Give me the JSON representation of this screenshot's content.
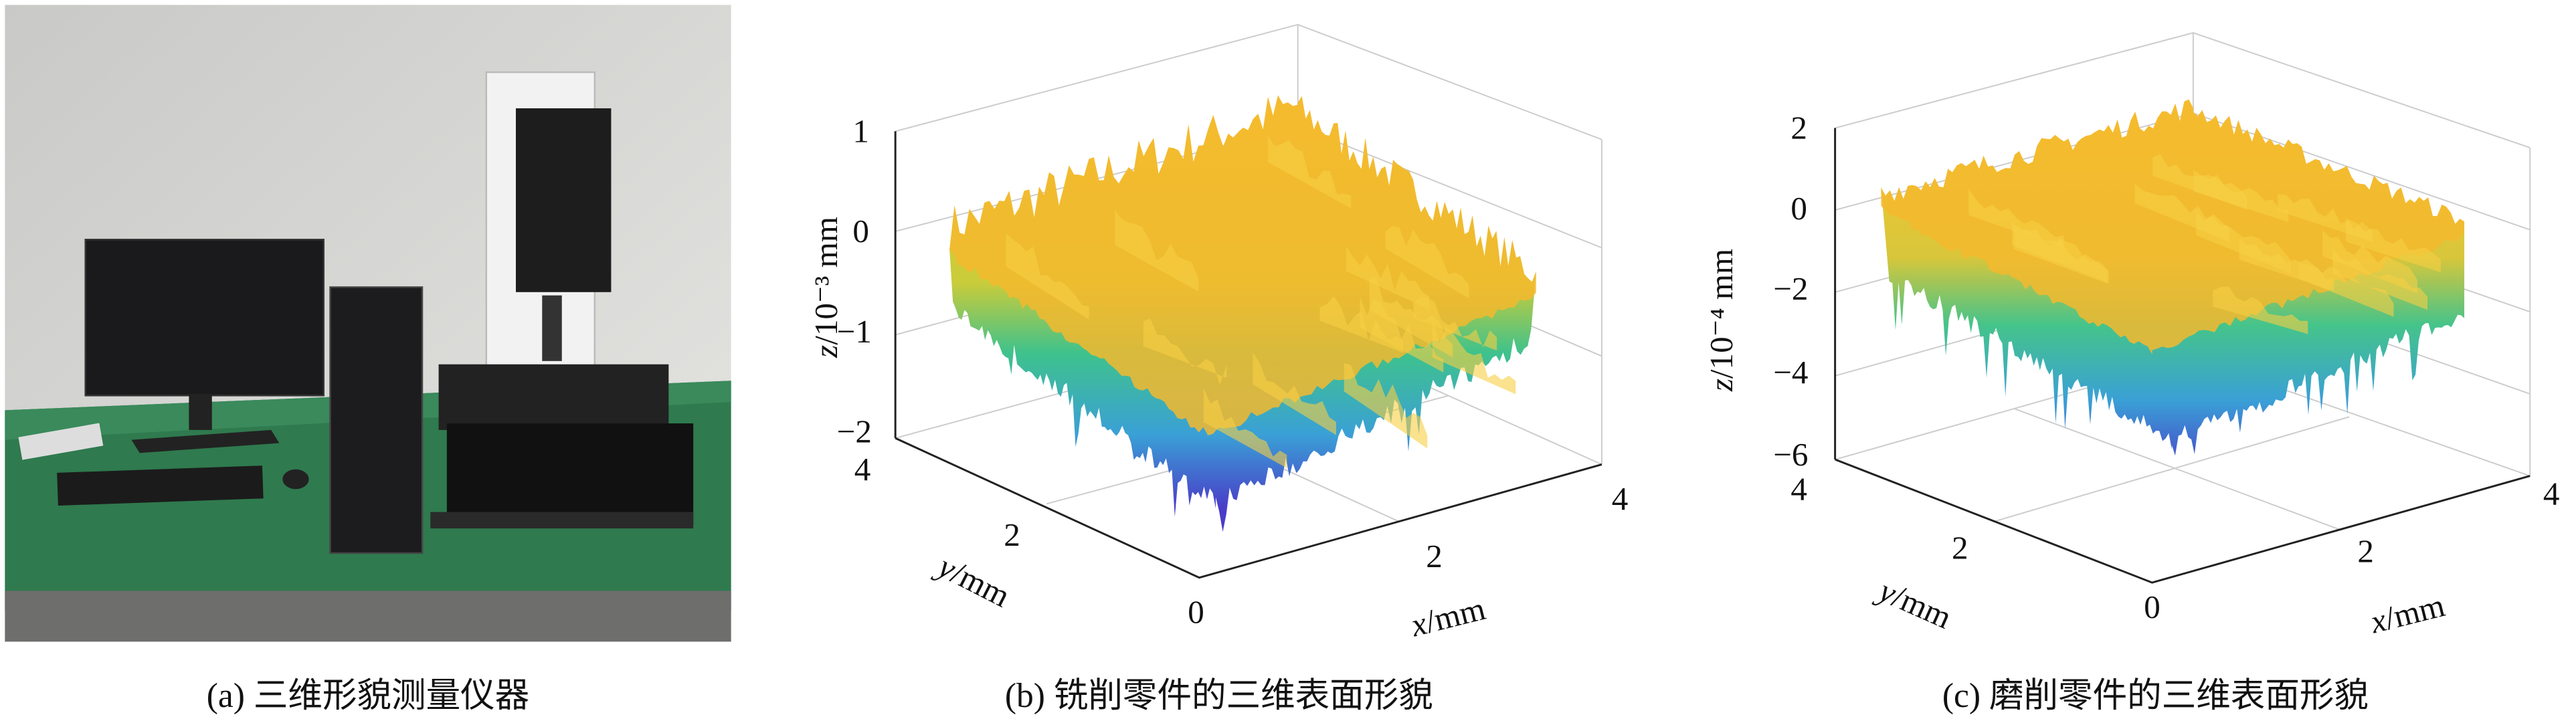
{
  "panels": [
    {
      "caption": "(a) 三维形貌测量仪器"
    },
    {
      "caption": "(b) 铣削零件的三维表面形貌",
      "z_label": {
        "var": "z",
        "rest": "/10⁻³ mm"
      },
      "z_ticks": [
        "1",
        "0",
        "−1",
        "−2"
      ],
      "y_label": {
        "var": "y",
        "rest": "/mm"
      },
      "y_ticks": [
        "4",
        "2",
        "0"
      ],
      "x_label": {
        "var": "x",
        "rest": "/mm"
      },
      "x_ticks": [
        "2",
        "4"
      ]
    },
    {
      "caption": "(c) 磨削零件的三维表面形貌",
      "z_label": {
        "var": "z",
        "rest": "/10⁻⁴ mm"
      },
      "z_ticks": [
        "2",
        "0",
        "−2",
        "−4",
        "−6"
      ],
      "y_label": {
        "var": "y",
        "rest": "/mm"
      },
      "y_ticks": [
        "4",
        "2",
        "0"
      ],
      "x_label": {
        "var": "x",
        "rest": "/mm"
      },
      "x_ticks": [
        "2",
        "4"
      ]
    }
  ]
}
